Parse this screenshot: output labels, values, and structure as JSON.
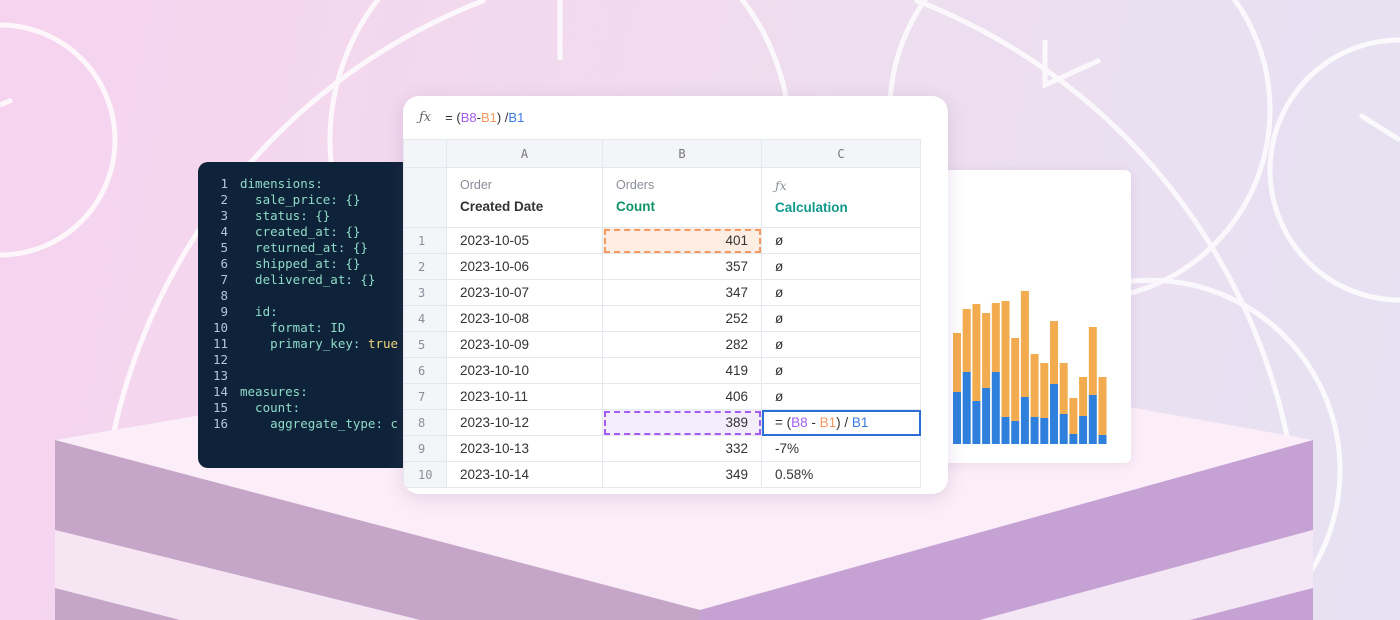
{
  "formula_bar": {
    "icon": "function-icon",
    "prefix": "= (",
    "ref1": "B8",
    "minus": " - ",
    "ref2": "B1",
    "close": ") / ",
    "ref3": "B1"
  },
  "colors": {
    "purple": "#a45cf0",
    "orange": "#f4995f",
    "blue": "#3a7be0",
    "green": "#12936b",
    "code_bg": "#0e2339"
  },
  "code": [
    {
      "n": "1",
      "t": "dimensions:"
    },
    {
      "n": "2",
      "t": "  sale_price: {}"
    },
    {
      "n": "3",
      "t": "  status: {}"
    },
    {
      "n": "4",
      "t": "  created_at: {}"
    },
    {
      "n": "5",
      "t": "  returned_at: {}"
    },
    {
      "n": "6",
      "t": "  shipped_at: {}"
    },
    {
      "n": "7",
      "t": "  delivered_at: {}"
    },
    {
      "n": "8",
      "t": ""
    },
    {
      "n": "9",
      "t": "  id:"
    },
    {
      "n": "10",
      "t": "    format: ID"
    },
    {
      "n": "11",
      "t": "    primary_key: ",
      "kw": "true"
    },
    {
      "n": "12",
      "t": ""
    },
    {
      "n": "13",
      "t": ""
    },
    {
      "n": "14",
      "t": "measures:"
    },
    {
      "n": "15",
      "t": "  count:"
    },
    {
      "n": "16",
      "t": "    aggregate_type: c"
    }
  ],
  "sheet": {
    "columns": [
      "A",
      "B",
      "C"
    ],
    "headers": [
      {
        "sub": "Order",
        "main": "Created Date"
      },
      {
        "sub": "Orders",
        "main": "Count"
      },
      {
        "sub": "ƒx",
        "main": "Calculation"
      }
    ],
    "rows": [
      {
        "n": "1",
        "date": "2023-10-05",
        "count": "401",
        "calc": "ø"
      },
      {
        "n": "2",
        "date": "2023-10-06",
        "count": "357",
        "calc": "ø"
      },
      {
        "n": "3",
        "date": "2023-10-07",
        "count": "347",
        "calc": "ø"
      },
      {
        "n": "4",
        "date": "2023-10-08",
        "count": "252",
        "calc": "ø"
      },
      {
        "n": "5",
        "date": "2023-10-09",
        "count": "282",
        "calc": "ø"
      },
      {
        "n": "6",
        "date": "2023-10-10",
        "count": "419",
        "calc": "ø"
      },
      {
        "n": "7",
        "date": "2023-10-11",
        "count": "406",
        "calc": "ø"
      },
      {
        "n": "8",
        "date": "2023-10-12",
        "count": "389",
        "calc": ""
      },
      {
        "n": "9",
        "date": "2023-10-13",
        "count": "332",
        "calc": "-7%"
      },
      {
        "n": "10",
        "date": "2023-10-14",
        "count": "349",
        "calc": "0.58%"
      }
    ]
  },
  "chart_data": {
    "type": "bar",
    "stacked": true,
    "series_colors": [
      "#2f80dd",
      "#f2ac4f"
    ],
    "blue": [
      52,
      72,
      43,
      56,
      72,
      27,
      23,
      47,
      27,
      26,
      60,
      30,
      10,
      28,
      49,
      9
    ],
    "total": [
      111,
      135,
      140,
      131,
      141,
      143,
      106,
      153,
      90,
      81,
      123,
      81,
      46,
      67,
      117,
      67
    ]
  }
}
